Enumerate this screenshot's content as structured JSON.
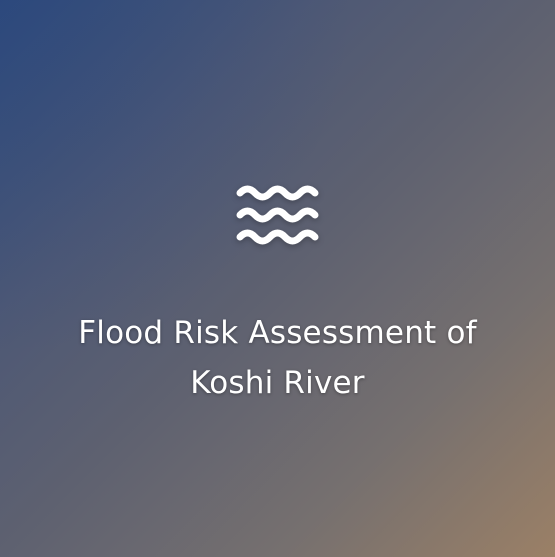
{
  "card": {
    "icon": "water-waves-icon",
    "title": "Flood Risk Assessment of Koshi River"
  },
  "colors": {
    "gradient_start": "#2e4a7a",
    "gradient_mid": "#5e6170",
    "gradient_end": "#9b8066",
    "text": "#ffffff"
  }
}
